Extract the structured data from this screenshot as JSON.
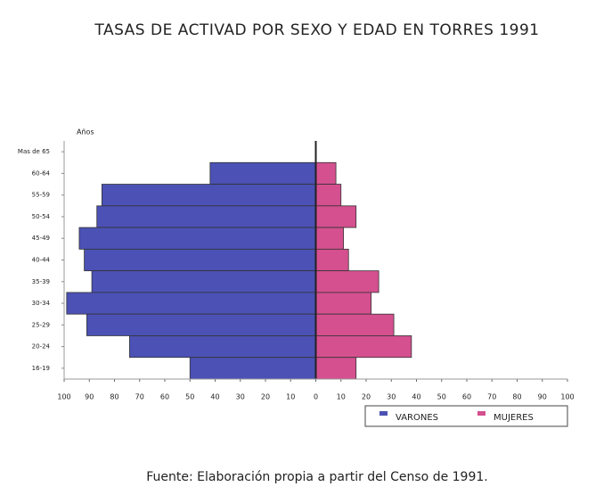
{
  "chart_data": {
    "type": "pyramid",
    "title": "TASAS DE ACTIVAD POR SEXO Y EDAD EN TORRES 1991",
    "y_label": "Años",
    "source": "Fuente: Elaboración propia a partir del Censo de 1991.",
    "categories": [
      "Mas de 65",
      "60-64",
      "55-59",
      "50-54",
      "45-49",
      "40-44",
      "35-39",
      "30-34",
      "25-29",
      "20-24",
      "16-19"
    ],
    "series": [
      {
        "name": "VARONES",
        "color": "#4b51b5",
        "values": [
          null,
          42,
          85,
          87,
          94,
          92,
          89,
          99,
          91,
          74,
          50
        ]
      },
      {
        "name": "MUJERES",
        "color": "#d4508f",
        "values": [
          null,
          8,
          10,
          16,
          11,
          13,
          25,
          22,
          31,
          38,
          16
        ]
      }
    ],
    "xlim": [
      -100,
      100
    ],
    "xticks": [
      {
        "value": -100,
        "label": "100"
      },
      {
        "value": -90,
        "label": "90"
      },
      {
        "value": -80,
        "label": "80"
      },
      {
        "value": -70,
        "label": "70"
      },
      {
        "value": -60,
        "label": "60"
      },
      {
        "value": -50,
        "label": "50"
      },
      {
        "value": -40,
        "label": "40"
      },
      {
        "value": -30,
        "label": "30"
      },
      {
        "value": -20,
        "label": "20"
      },
      {
        "value": -10,
        "label": "10"
      },
      0,
      10,
      20,
      30,
      40,
      50,
      60,
      70,
      80,
      90,
      100
    ],
    "legend": "bottom-right"
  }
}
